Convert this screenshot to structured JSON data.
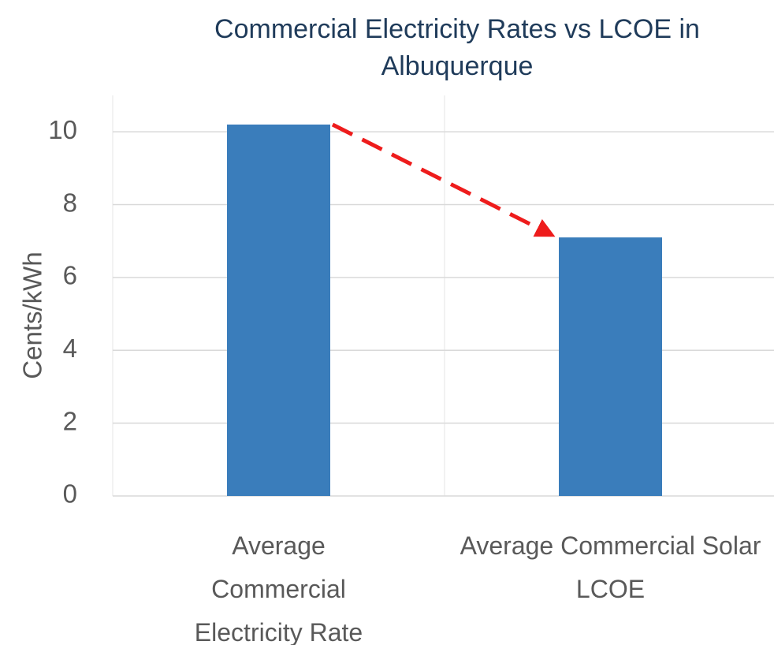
{
  "chart_data": {
    "type": "bar",
    "title": "Commercial Electricity Rates vs LCOE in Albuquerque",
    "y_label": "Cents/kWh",
    "categories": [
      "Average Commercial Electricity Rate",
      "Average Commercial Solar LCOE"
    ],
    "values": [
      10.2,
      7.1
    ],
    "color": "#3a7dbb",
    "ylim": [
      0,
      11
    ],
    "yticks": [
      0,
      2,
      4,
      6,
      8,
      10
    ],
    "grid": true
  }
}
